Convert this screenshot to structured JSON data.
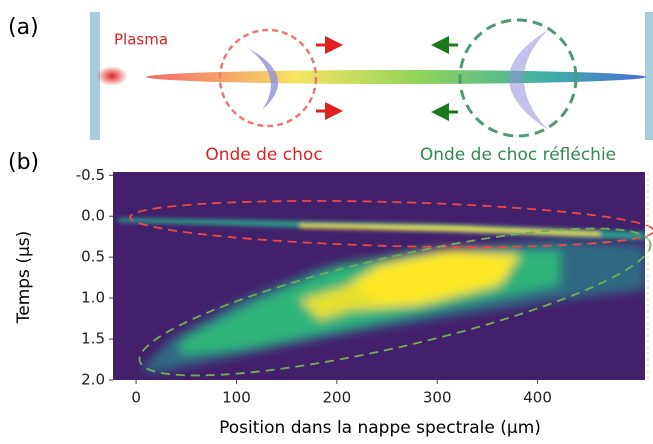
{
  "panel_a": {
    "label": "(a)",
    "plasma": "Plasma",
    "shock": "Onde de choc",
    "reflected_shock": "Onde de choc réfléchie"
  },
  "panel_b": {
    "label": "(b)"
  },
  "chart_data": {
    "type": "heatmap",
    "x_label": "Position dans la nappe spectrale (µm)",
    "y_label": "Temps (µs)",
    "xlim": [
      -23,
      507
    ],
    "xticks": [
      0,
      100,
      200,
      300,
      400
    ],
    "ylim": [
      -0.54,
      2.0
    ],
    "y_inverted": true,
    "yticks": [
      -0.5,
      {
        "value": 0,
        "label": "0.0"
      },
      0.5,
      {
        "value": 1,
        "label": "1.0"
      },
      1.5,
      {
        "value": 2,
        "label": "2.0"
      }
    ]
  }
}
